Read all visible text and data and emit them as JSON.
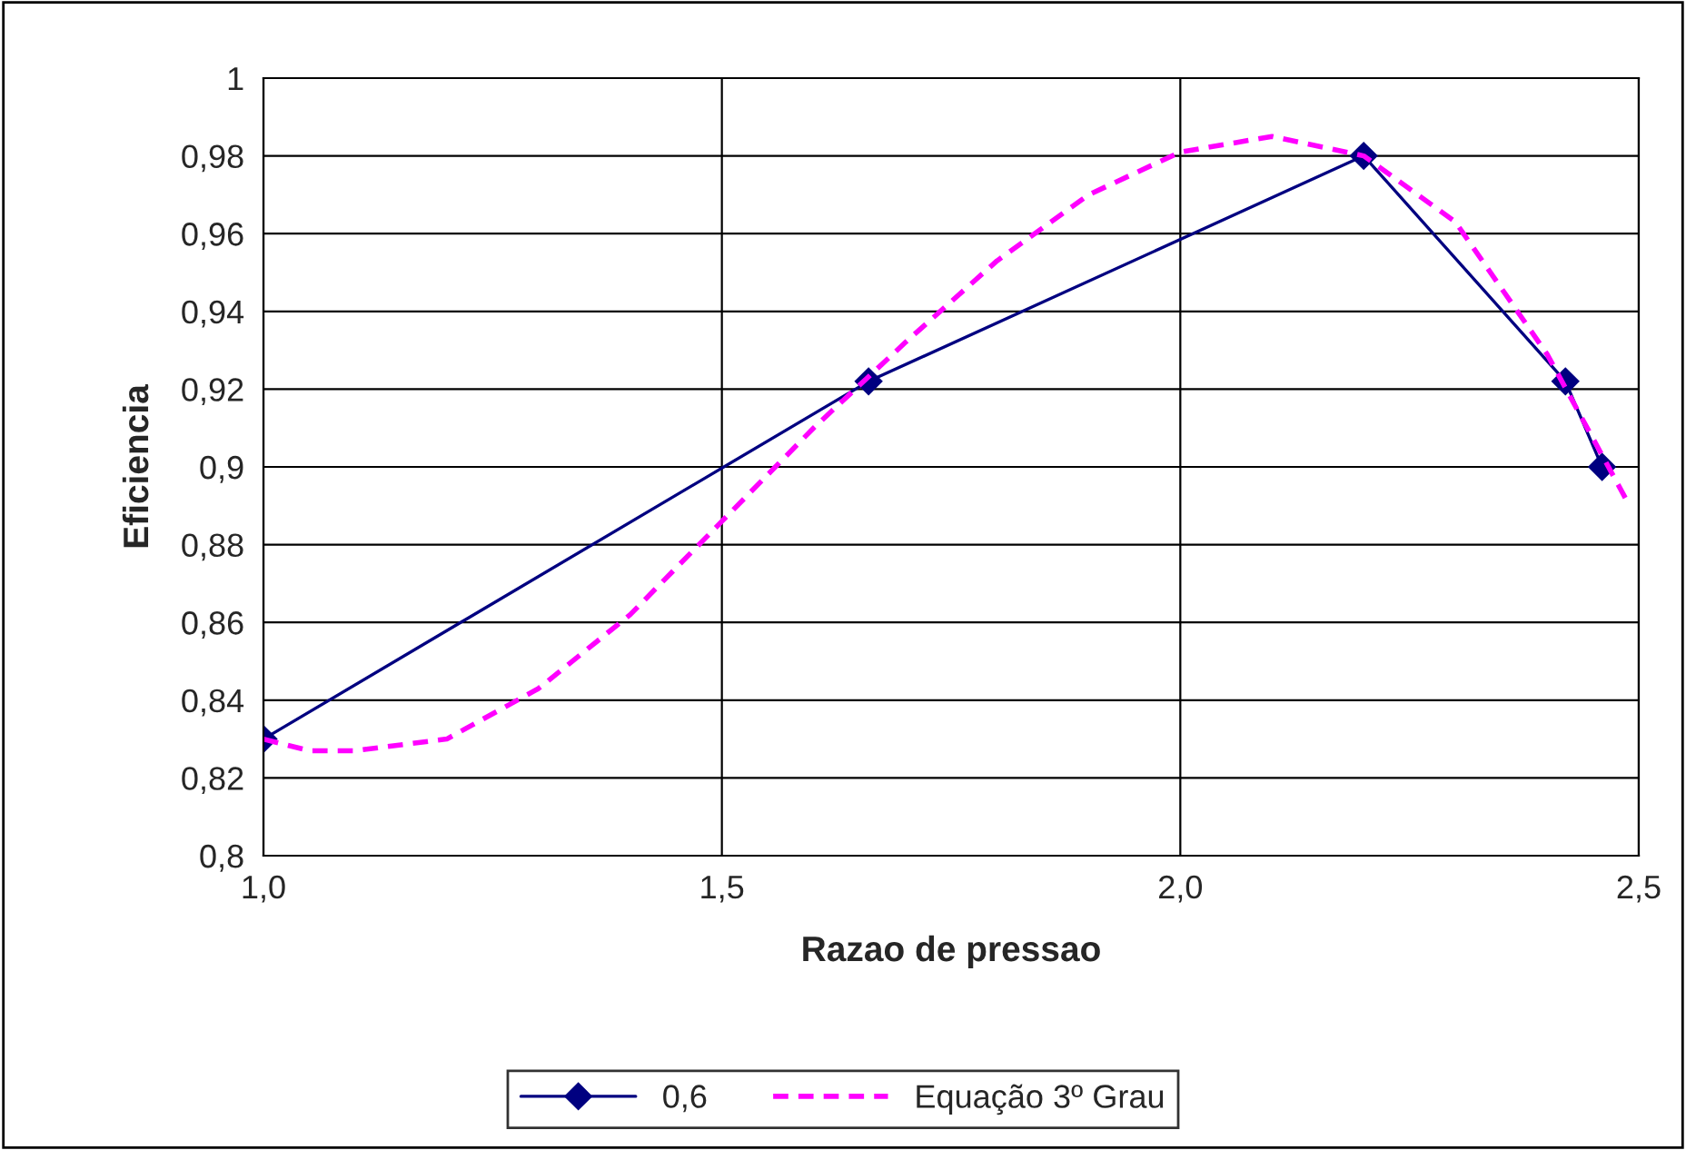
{
  "chart_data": {
    "type": "line",
    "xlabel": "Razao de pressao",
    "ylabel": "Eficiencia",
    "xlim": [
      1.0,
      2.5
    ],
    "ylim": [
      0.8,
      1.0
    ],
    "xticks": [
      {
        "value": 1.0,
        "label": "1,0"
      },
      {
        "value": 1.5,
        "label": "1,5"
      },
      {
        "value": 2.0,
        "label": "2,0"
      },
      {
        "value": 2.5,
        "label": "2,5"
      }
    ],
    "yticks": [
      {
        "value": 0.8,
        "label": "0,8"
      },
      {
        "value": 0.82,
        "label": "0,82"
      },
      {
        "value": 0.84,
        "label": "0,84"
      },
      {
        "value": 0.86,
        "label": "0,86"
      },
      {
        "value": 0.88,
        "label": "0,88"
      },
      {
        "value": 0.9,
        "label": "0,9"
      },
      {
        "value": 0.92,
        "label": "0,92"
      },
      {
        "value": 0.94,
        "label": "0,94"
      },
      {
        "value": 0.96,
        "label": "0,96"
      },
      {
        "value": 0.98,
        "label": "0,98"
      },
      {
        "value": 1,
        "label": "1"
      }
    ],
    "grid": true,
    "legend": "bottom",
    "series": [
      {
        "name": "0,6",
        "color": "#000080",
        "marker": "diamond",
        "line_style": "solid",
        "x": [
          1.0,
          1.66,
          2.2,
          2.42,
          2.46
        ],
        "values": [
          0.83,
          0.922,
          0.98,
          0.922,
          0.9
        ]
      },
      {
        "name": "Equação 3º Grau",
        "color": "#ff00ff",
        "marker": "none",
        "line_style": "dashed",
        "x": [
          1.0,
          1.05,
          1.1,
          1.2,
          1.3,
          1.4,
          1.5,
          1.6,
          1.7,
          1.8,
          1.9,
          2.0,
          2.1,
          2.2,
          2.3,
          2.4,
          2.49
        ],
        "values": [
          0.83,
          0.827,
          0.827,
          0.83,
          0.843,
          0.862,
          0.886,
          0.91,
          0.932,
          0.953,
          0.97,
          0.981,
          0.985,
          0.98,
          0.963,
          0.929,
          0.89
        ]
      }
    ]
  }
}
